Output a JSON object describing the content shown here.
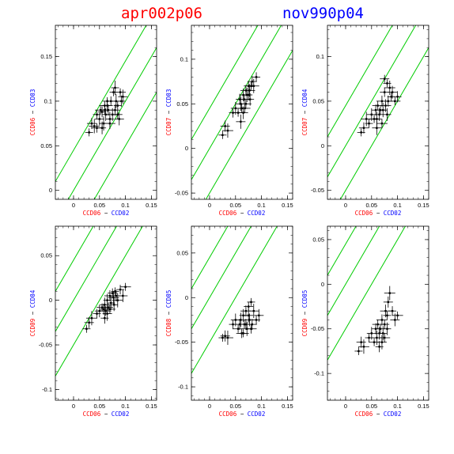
{
  "titles": {
    "left": "apr002p06",
    "right": "nov990p04",
    "left_color": "#ff0000",
    "right_color": "#0000ff"
  },
  "colors": {
    "red": "#ff0000",
    "blue": "#0000ff",
    "line": "#00cc00",
    "points": "#000000"
  },
  "chart_data": [
    {
      "type": "scatter",
      "xlabel": {
        "left": "CCD06",
        "sep": " − ",
        "right": "CCD02"
      },
      "ylabel": {
        "left": "CCD06",
        "sep": " − ",
        "right": "CCD03"
      },
      "xlim": [
        -0.035,
        0.16
      ],
      "ylim": [
        -0.01,
        0.185
      ],
      "xticks": [
        0,
        0.05,
        0.1,
        0.15
      ],
      "xticklabels": [
        "0",
        "0.05",
        "0.1",
        "0.15"
      ],
      "yticks": [
        0,
        0.05,
        0.1,
        0.15
      ],
      "yticklabels": [
        "0",
        "0.05",
        "0.1",
        "0.15"
      ],
      "lines": [
        {
          "slope": 1,
          "intercept": 0.045
        },
        {
          "slope": 1,
          "intercept": 0
        },
        {
          "slope": 1,
          "intercept": -0.05
        }
      ],
      "x": [
        0.03,
        0.035,
        0.04,
        0.045,
        0.05,
        0.052,
        0.055,
        0.058,
        0.06,
        0.062,
        0.065,
        0.067,
        0.07,
        0.072,
        0.075,
        0.077,
        0.08,
        0.082,
        0.085,
        0.088,
        0.09,
        0.092,
        0.095,
        0.045,
        0.055,
        0.06,
        0.07,
        0.08,
        0.085,
        0.065
      ],
      "y": [
        0.065,
        0.075,
        0.072,
        0.085,
        0.08,
        0.09,
        0.088,
        0.075,
        0.095,
        0.085,
        0.1,
        0.09,
        0.08,
        0.1,
        0.085,
        0.11,
        0.09,
        0.1,
        0.095,
        0.08,
        0.11,
        0.1,
        0.105,
        0.07,
        0.07,
        0.09,
        0.075,
        0.115,
        0.085,
        0.095
      ]
    },
    {
      "type": "scatter",
      "xlabel": {
        "left": "CCD06",
        "sep": " − ",
        "right": "CCD02"
      },
      "ylabel": {
        "left": "CCD07",
        "sep": " − ",
        "right": "CCD03"
      },
      "xlim": [
        -0.035,
        0.16
      ],
      "ylim": [
        -0.057,
        0.138
      ],
      "xticks": [
        0,
        0.05,
        0.1,
        0.15
      ],
      "xticklabels": [
        "0",
        "0.05",
        "0.1",
        "0.15"
      ],
      "yticks": [
        -0.05,
        0,
        0.05,
        0.1
      ],
      "yticklabels": [
        "-0.05",
        "0",
        "0.05",
        "0.1"
      ],
      "lines": [
        {
          "slope": 1,
          "intercept": 0.045
        },
        {
          "slope": 1,
          "intercept": 0
        },
        {
          "slope": 1,
          "intercept": -0.05
        }
      ],
      "x": [
        0.025,
        0.03,
        0.035,
        0.045,
        0.05,
        0.055,
        0.058,
        0.06,
        0.062,
        0.065,
        0.067,
        0.07,
        0.072,
        0.075,
        0.077,
        0.08,
        0.082,
        0.085,
        0.09,
        0.065,
        0.07,
        0.075,
        0.06,
        0.068,
        0.078
      ],
      "y": [
        0.015,
        0.025,
        0.02,
        0.04,
        0.045,
        0.04,
        0.055,
        0.05,
        0.045,
        0.06,
        0.055,
        0.065,
        0.06,
        0.07,
        0.065,
        0.07,
        0.075,
        0.07,
        0.08,
        0.04,
        0.05,
        0.06,
        0.03,
        0.045,
        0.055
      ]
    },
    {
      "type": "scatter",
      "xlabel": {
        "left": "CCD06",
        "sep": " − ",
        "right": "CCD02"
      },
      "ylabel": {
        "left": "CCD07",
        "sep": " − ",
        "right": "CCD04"
      },
      "xlim": [
        -0.035,
        0.16
      ],
      "ylim": [
        -0.06,
        0.135
      ],
      "xticks": [
        0,
        0.05,
        0.1,
        0.15
      ],
      "xticklabels": [
        "0",
        "0.05",
        "0.1",
        "0.15"
      ],
      "yticks": [
        -0.05,
        0,
        0.05,
        0.1
      ],
      "yticklabels": [
        "-0.05",
        "0",
        "0.05",
        "0.1"
      ],
      "lines": [
        {
          "slope": 1,
          "intercept": 0.045
        },
        {
          "slope": 1,
          "intercept": 0
        },
        {
          "slope": 1,
          "intercept": -0.05
        }
      ],
      "x": [
        0.03,
        0.035,
        0.04,
        0.045,
        0.05,
        0.055,
        0.058,
        0.06,
        0.062,
        0.065,
        0.067,
        0.07,
        0.072,
        0.075,
        0.077,
        0.08,
        0.082,
        0.085,
        0.088,
        0.09,
        0.095,
        0.1,
        0.06,
        0.07,
        0.08,
        0.075
      ],
      "y": [
        0.015,
        0.02,
        0.03,
        0.025,
        0.035,
        0.03,
        0.04,
        0.03,
        0.045,
        0.035,
        0.04,
        0.05,
        0.04,
        0.06,
        0.045,
        0.07,
        0.05,
        0.065,
        0.055,
        0.06,
        0.05,
        0.055,
        0.02,
        0.025,
        0.035,
        0.075
      ]
    },
    {
      "type": "scatter",
      "xlabel": {
        "left": "CCD06",
        "sep": " − ",
        "right": "CCD02"
      },
      "ylabel": {
        "left": "CCD09",
        "sep": " − ",
        "right": "CCD04"
      },
      "xlim": [
        -0.035,
        0.16
      ],
      "ylim": [
        -0.112,
        0.083
      ],
      "xticks": [
        0,
        0.05,
        0.1,
        0.15
      ],
      "xticklabels": [
        "0",
        "0.05",
        "0.1",
        "0.15"
      ],
      "yticks": [
        -0.1,
        -0.05,
        0,
        0.05
      ],
      "yticklabels": [
        "-0.1",
        "-0.05",
        "0",
        "0.05"
      ],
      "lines": [
        {
          "slope": 1,
          "intercept": 0.045
        },
        {
          "slope": 1,
          "intercept": 0
        },
        {
          "slope": 1,
          "intercept": -0.05
        }
      ],
      "x": [
        0.025,
        0.03,
        0.035,
        0.045,
        0.05,
        0.055,
        0.058,
        0.06,
        0.062,
        0.065,
        0.067,
        0.07,
        0.072,
        0.075,
        0.077,
        0.08,
        0.082,
        0.085,
        0.09,
        0.095,
        0.1,
        0.06,
        0.065,
        0.07,
        0.078
      ],
      "y": [
        -0.032,
        -0.025,
        -0.02,
        -0.015,
        -0.012,
        -0.008,
        -0.01,
        -0.005,
        -0.012,
        0,
        -0.008,
        0.005,
        -0.003,
        0.008,
        0.003,
        0.01,
        0.005,
        0,
        0.012,
        0.005,
        0.015,
        -0.02,
        -0.015,
        -0.01,
        -0.005
      ]
    },
    {
      "type": "scatter",
      "xlabel": {
        "left": "CCD06",
        "sep": " − ",
        "right": "CCD02"
      },
      "ylabel": {
        "left": "CCD08",
        "sep": " − ",
        "right": "CCD05"
      },
      "xlim": [
        -0.035,
        0.16
      ],
      "ylim": [
        -0.115,
        0.08
      ],
      "xticks": [
        0,
        0.05,
        0.1,
        0.15
      ],
      "xticklabels": [
        "0",
        "0.05",
        "0.1",
        "0.15"
      ],
      "yticks": [
        -0.1,
        -0.05,
        0,
        0.05
      ],
      "yticklabels": [
        "-0.1",
        "-0.05",
        "0",
        "0.05"
      ],
      "lines": [
        {
          "slope": 1,
          "intercept": 0.045
        },
        {
          "slope": 1,
          "intercept": 0
        },
        {
          "slope": 1,
          "intercept": -0.05
        }
      ],
      "x": [
        0.025,
        0.03,
        0.035,
        0.045,
        0.05,
        0.055,
        0.058,
        0.06,
        0.062,
        0.065,
        0.067,
        0.07,
        0.072,
        0.075,
        0.077,
        0.08,
        0.082,
        0.085,
        0.09,
        0.095,
        0.065,
        0.07,
        0.075,
        0.08
      ],
      "y": [
        -0.045,
        -0.043,
        -0.045,
        -0.03,
        -0.025,
        -0.035,
        -0.03,
        -0.025,
        -0.04,
        -0.02,
        -0.03,
        -0.015,
        -0.035,
        -0.01,
        -0.025,
        -0.005,
        -0.03,
        -0.015,
        -0.025,
        -0.02,
        -0.04,
        -0.03,
        -0.02,
        -0.035
      ]
    },
    {
      "type": "scatter",
      "xlabel": {
        "left": "CCD06",
        "sep": " − ",
        "right": "CCD02"
      },
      "ylabel": {
        "left": "CCD09",
        "sep": " − ",
        "right": "CCD05"
      },
      "xlim": [
        -0.035,
        0.16
      ],
      "ylim": [
        -0.13,
        0.065
      ],
      "xticks": [
        0,
        0.05,
        0.1,
        0.15
      ],
      "xticklabels": [
        "0",
        "0.05",
        "0.1",
        "0.15"
      ],
      "yticks": [
        -0.1,
        -0.05,
        0,
        0.05
      ],
      "yticklabels": [
        "-0.1",
        "-0.05",
        "0",
        "0.05"
      ],
      "lines": [
        {
          "slope": 1,
          "intercept": 0.045
        },
        {
          "slope": 1,
          "intercept": 0
        },
        {
          "slope": 1,
          "intercept": -0.05
        }
      ],
      "x": [
        0.025,
        0.03,
        0.035,
        0.045,
        0.05,
        0.055,
        0.058,
        0.06,
        0.062,
        0.065,
        0.067,
        0.07,
        0.072,
        0.075,
        0.077,
        0.08,
        0.082,
        0.085,
        0.09,
        0.095,
        0.1,
        0.065,
        0.07,
        0.075,
        0.08
      ],
      "y": [
        -0.075,
        -0.065,
        -0.07,
        -0.06,
        -0.055,
        -0.065,
        -0.05,
        -0.06,
        -0.045,
        -0.055,
        -0.05,
        -0.04,
        -0.055,
        -0.045,
        -0.03,
        -0.035,
        -0.02,
        -0.01,
        -0.03,
        -0.04,
        -0.035,
        -0.07,
        -0.065,
        -0.06,
        -0.05
      ]
    }
  ]
}
